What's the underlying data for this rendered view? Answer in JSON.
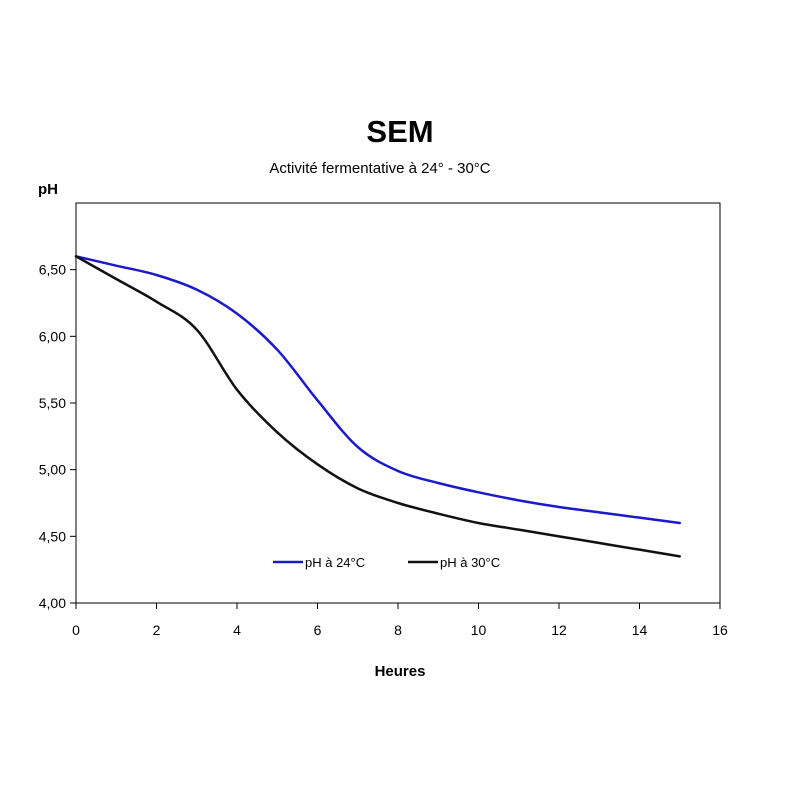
{
  "chart_data": {
    "type": "line",
    "title": "SEM",
    "subtitle": "Activité fermentative à 24° - 30°C",
    "xlabel": "Heures",
    "ylabel": "pH",
    "xlim": [
      0,
      16
    ],
    "ylim": [
      4.0,
      7.0
    ],
    "x_ticks": [
      "0",
      "2",
      "4",
      "6",
      "8",
      "10",
      "12",
      "14",
      "16"
    ],
    "y_ticks": [
      "4,00",
      "4,50",
      "5,00",
      "5,50",
      "6,00",
      "6,50"
    ],
    "grid": false,
    "legend_position": "bottom-center inside plot",
    "series": [
      {
        "name": "pH à 24°C",
        "color": "#1a1acc",
        "x": [
          0,
          1,
          2,
          3,
          4,
          5,
          6,
          7,
          8,
          9,
          10,
          11,
          12,
          13,
          14,
          15
        ],
        "values": [
          6.6,
          6.53,
          6.46,
          6.35,
          6.17,
          5.9,
          5.52,
          5.17,
          4.99,
          4.9,
          4.83,
          4.77,
          4.72,
          4.68,
          4.64,
          4.6
        ]
      },
      {
        "name": "pH à 30°C",
        "color": "#111111",
        "x": [
          0,
          1,
          2,
          3,
          4,
          5,
          6,
          7,
          8,
          9,
          10,
          11,
          12,
          13,
          14,
          15
        ],
        "values": [
          6.6,
          6.43,
          6.26,
          6.05,
          5.6,
          5.28,
          5.04,
          4.86,
          4.75,
          4.67,
          4.6,
          4.55,
          4.5,
          4.45,
          4.4,
          4.35
        ]
      }
    ]
  }
}
